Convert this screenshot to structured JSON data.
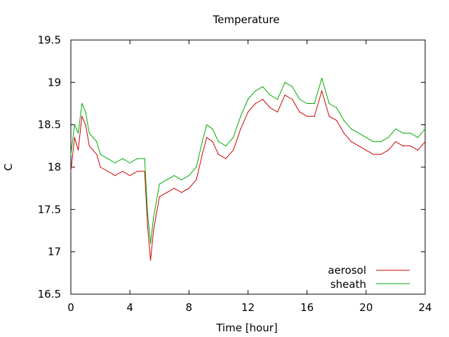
{
  "chart_data": {
    "type": "line",
    "title": "Temperature",
    "xlabel": "Time [hour]",
    "ylabel": "C",
    "xlim": [
      0,
      24
    ],
    "ylim": [
      16.5,
      19.5
    ],
    "x_ticks": [
      0,
      4,
      8,
      12,
      16,
      20,
      24
    ],
    "y_ticks": [
      16.5,
      17,
      17.5,
      18,
      18.5,
      19,
      19.5
    ],
    "x_tick_labels": [
      "0",
      "4",
      "8",
      "12",
      "16",
      "20",
      "24"
    ],
    "y_tick_labels": [
      "16.5",
      "17",
      "17.5",
      "18",
      "18.5",
      "19",
      "19.5"
    ],
    "grid": false,
    "legend_position": "bottom-right",
    "series": [
      {
        "name": "aerosol",
        "color": "#cc0000",
        "x": [
          0,
          0.25,
          0.5,
          0.75,
          1.0,
          1.25,
          1.5,
          1.75,
          2.0,
          2.5,
          3.0,
          3.5,
          4.0,
          4.5,
          5.0,
          5.2,
          5.4,
          5.6,
          5.8,
          6.0,
          6.5,
          7.0,
          7.5,
          8.0,
          8.5,
          8.9,
          9.2,
          9.6,
          10.0,
          10.5,
          11.0,
          11.5,
          12.0,
          12.5,
          13.0,
          13.5,
          14.0,
          14.5,
          15.0,
          15.5,
          16.0,
          16.5,
          17.0,
          17.5,
          18.0,
          18.5,
          19.0,
          19.5,
          20.0,
          20.5,
          21.0,
          21.5,
          22.0,
          22.5,
          23.0,
          23.5,
          24.0
        ],
        "y": [
          17.95,
          18.35,
          18.2,
          18.6,
          18.5,
          18.25,
          18.2,
          18.15,
          18.0,
          17.95,
          17.9,
          17.95,
          17.9,
          17.95,
          17.95,
          17.3,
          16.9,
          17.25,
          17.45,
          17.65,
          17.7,
          17.75,
          17.7,
          17.75,
          17.85,
          18.15,
          18.35,
          18.3,
          18.15,
          18.1,
          18.2,
          18.45,
          18.65,
          18.75,
          18.8,
          18.7,
          18.65,
          18.85,
          18.8,
          18.65,
          18.6,
          18.6,
          18.9,
          18.6,
          18.55,
          18.4,
          18.3,
          18.25,
          18.2,
          18.15,
          18.15,
          18.2,
          18.3,
          18.25,
          18.25,
          18.2,
          18.3
        ]
      },
      {
        "name": "sheath",
        "color": "#00aa00",
        "x": [
          0,
          0.25,
          0.5,
          0.75,
          1.0,
          1.25,
          1.5,
          1.75,
          2.0,
          2.5,
          3.0,
          3.5,
          4.0,
          4.5,
          5.0,
          5.2,
          5.4,
          5.6,
          5.8,
          6.0,
          6.5,
          7.0,
          7.5,
          8.0,
          8.5,
          8.9,
          9.2,
          9.6,
          10.0,
          10.5,
          11.0,
          11.5,
          12.0,
          12.5,
          13.0,
          13.5,
          14.0,
          14.5,
          15.0,
          15.5,
          16.0,
          16.5,
          17.0,
          17.5,
          18.0,
          18.5,
          19.0,
          19.5,
          20.0,
          20.5,
          21.0,
          21.5,
          22.0,
          22.5,
          23.0,
          23.5,
          24.0
        ],
        "y": [
          18.15,
          18.5,
          18.4,
          18.75,
          18.65,
          18.4,
          18.35,
          18.3,
          18.15,
          18.1,
          18.05,
          18.1,
          18.05,
          18.1,
          18.1,
          17.45,
          17.1,
          17.4,
          17.6,
          17.8,
          17.85,
          17.9,
          17.85,
          17.9,
          18.0,
          18.3,
          18.5,
          18.45,
          18.3,
          18.25,
          18.35,
          18.6,
          18.8,
          18.9,
          18.95,
          18.85,
          18.8,
          19.0,
          18.95,
          18.8,
          18.75,
          18.75,
          19.05,
          18.75,
          18.7,
          18.55,
          18.45,
          18.4,
          18.35,
          18.3,
          18.3,
          18.35,
          18.45,
          18.4,
          18.4,
          18.35,
          18.45
        ]
      }
    ]
  }
}
